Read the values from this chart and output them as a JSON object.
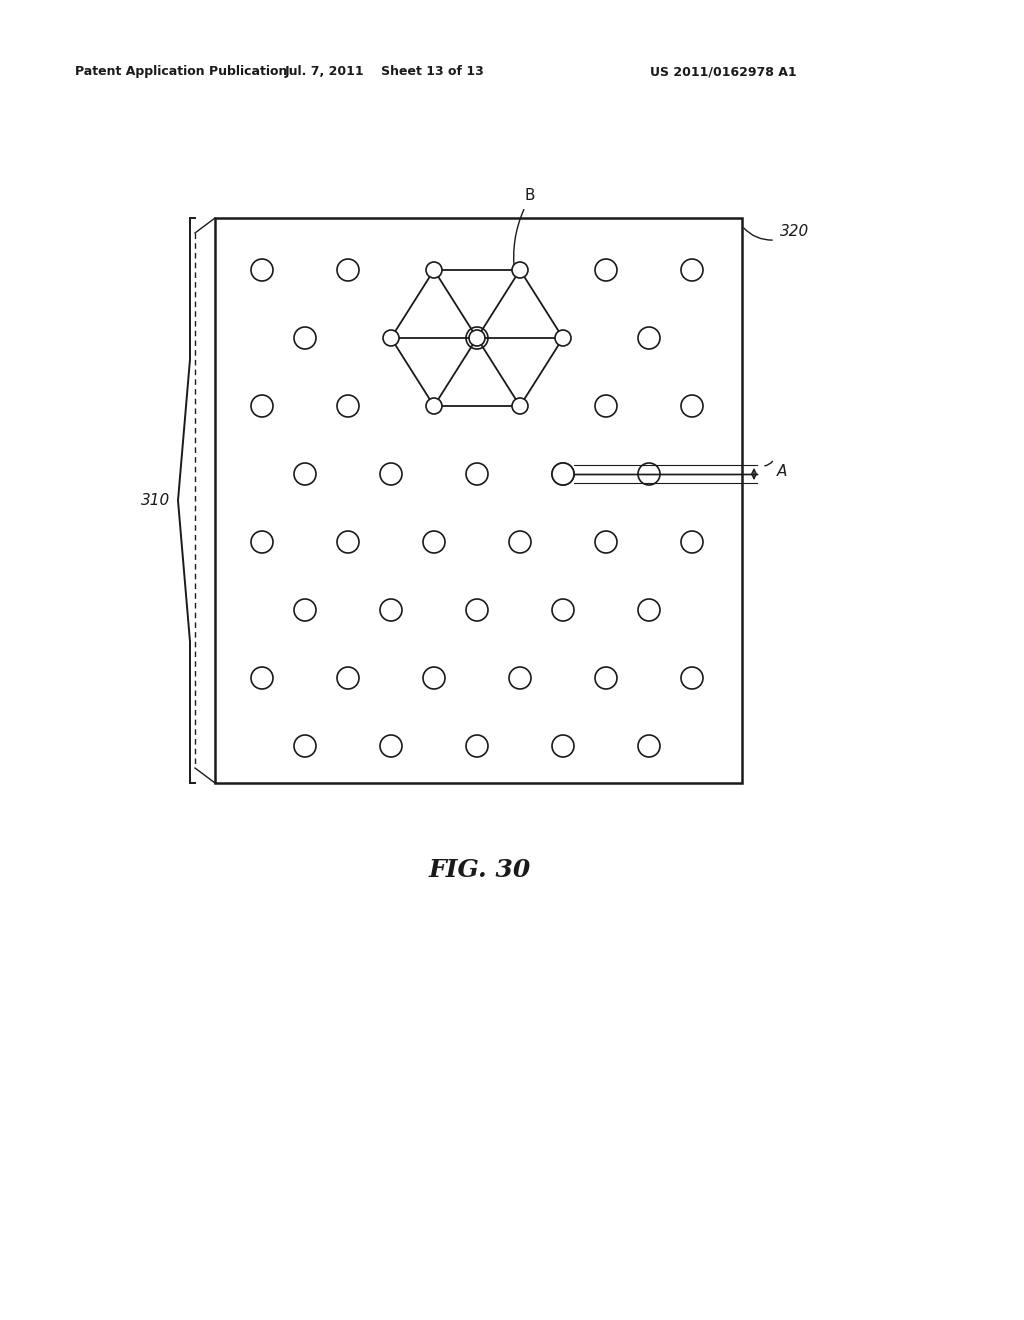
{
  "header_left": "Patent Application Publication",
  "header_mid": "Jul. 7, 2011   Sheet 13 of 13",
  "header_right": "US 2011/0162978 A1",
  "fig_caption": "FIG. 30",
  "label_310": "310",
  "label_320": "320",
  "label_A": "A",
  "label_B": "B",
  "background_color": "#ffffff",
  "line_color": "#1a1a1a"
}
